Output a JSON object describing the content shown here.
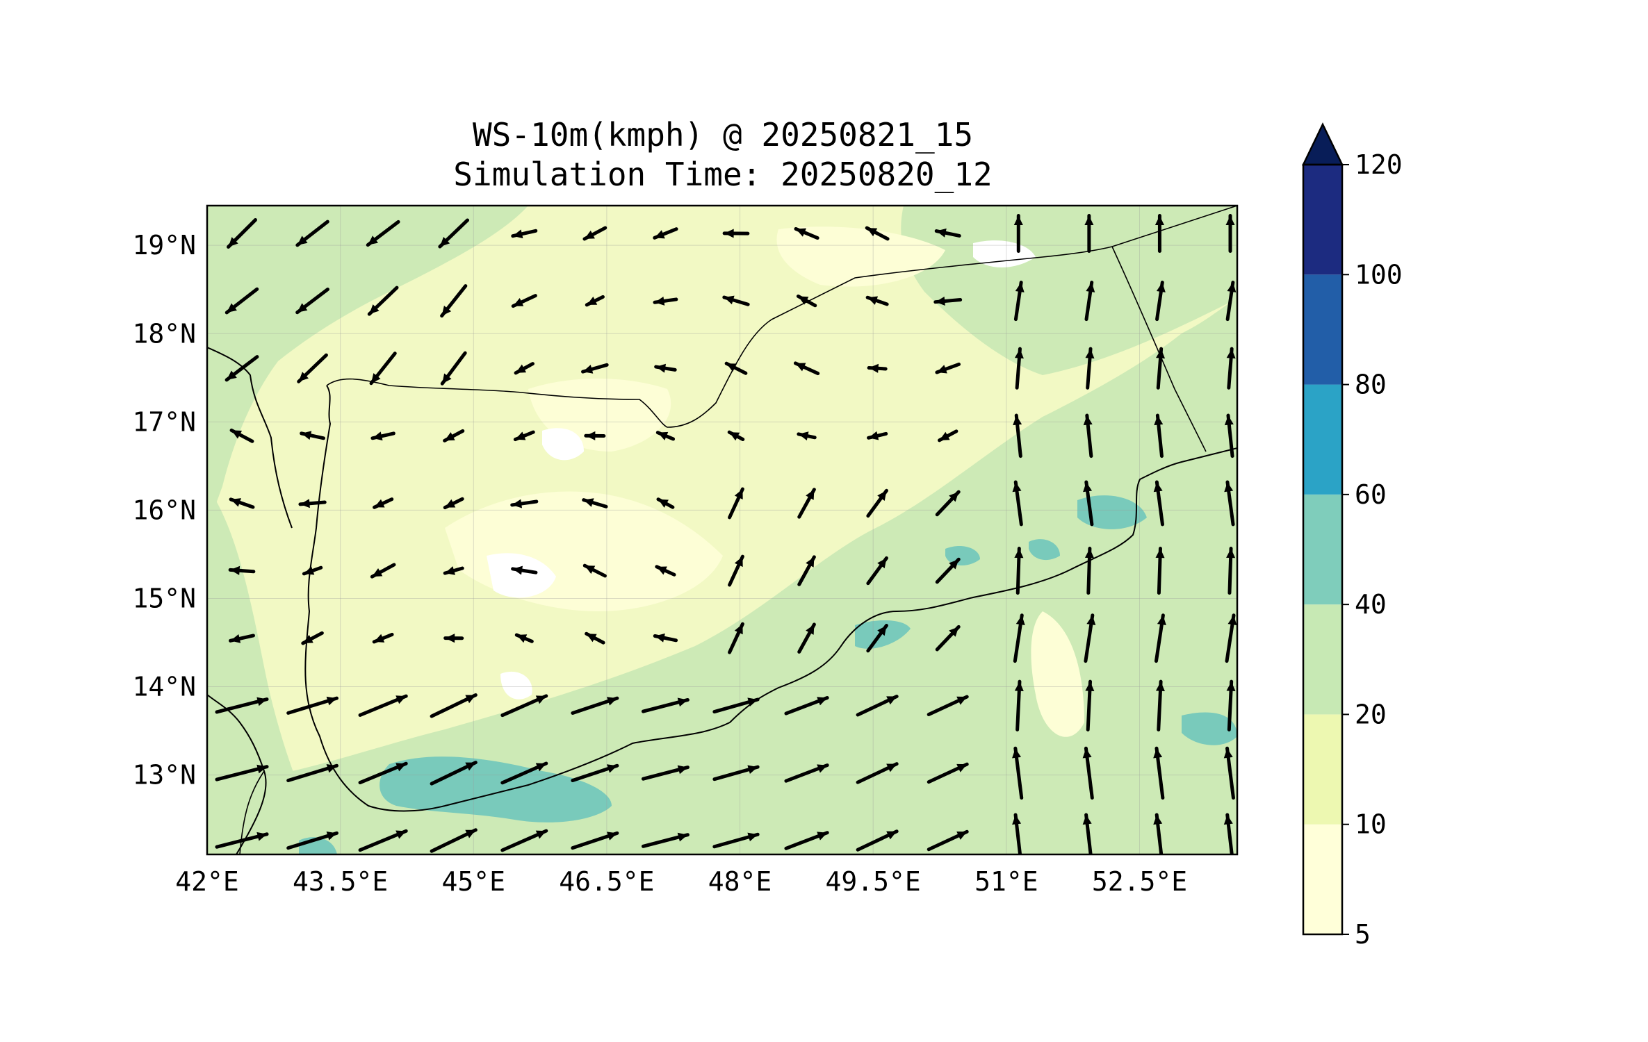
{
  "title": {
    "line1": "WS-10m(kmph) @ 20250821_15",
    "line2": "Simulation Time: 20250820_12"
  },
  "map": {
    "lon_range": [
      42.0,
      53.6
    ],
    "lat_range": [
      12.1,
      19.45
    ],
    "x_ticks": [
      {
        "value": 42.0,
        "label": "42°E"
      },
      {
        "value": 43.5,
        "label": "43.5°E"
      },
      {
        "value": 45.0,
        "label": "45°E"
      },
      {
        "value": 46.5,
        "label": "46.5°E"
      },
      {
        "value": 48.0,
        "label": "48°E"
      },
      {
        "value": 49.5,
        "label": "49.5°E"
      },
      {
        "value": 51.0,
        "label": "51°E"
      },
      {
        "value": 52.5,
        "label": "52.5°E"
      }
    ],
    "y_ticks": [
      {
        "value": 19.0,
        "label": "19°N"
      },
      {
        "value": 18.0,
        "label": "18°N"
      },
      {
        "value": 17.0,
        "label": "17°N"
      },
      {
        "value": 16.0,
        "label": "16°N"
      },
      {
        "value": 15.0,
        "label": "15°N"
      },
      {
        "value": 14.0,
        "label": "14°N"
      },
      {
        "value": 13.0,
        "label": "13°N"
      }
    ],
    "background_color": "#f2f9c4",
    "coastline_color": "#000000",
    "vector_color": "#000000"
  },
  "colorbar": {
    "levels": [
      {
        "value": 5,
        "label": "5"
      },
      {
        "value": 10,
        "label": "10"
      },
      {
        "value": 20,
        "label": "20"
      },
      {
        "value": 40,
        "label": "40"
      },
      {
        "value": 60,
        "label": "60"
      },
      {
        "value": 80,
        "label": "80"
      },
      {
        "value": 100,
        "label": "100"
      },
      {
        "value": 120,
        "label": "120"
      }
    ],
    "colors": [
      "#ffffd9",
      "#edf8b1",
      "#c7e9b4",
      "#7fcdbb",
      "#2ba3c6",
      "#225ea8",
      "#1c2b80"
    ],
    "extend_color": "#081d58",
    "extend": "max"
  }
}
